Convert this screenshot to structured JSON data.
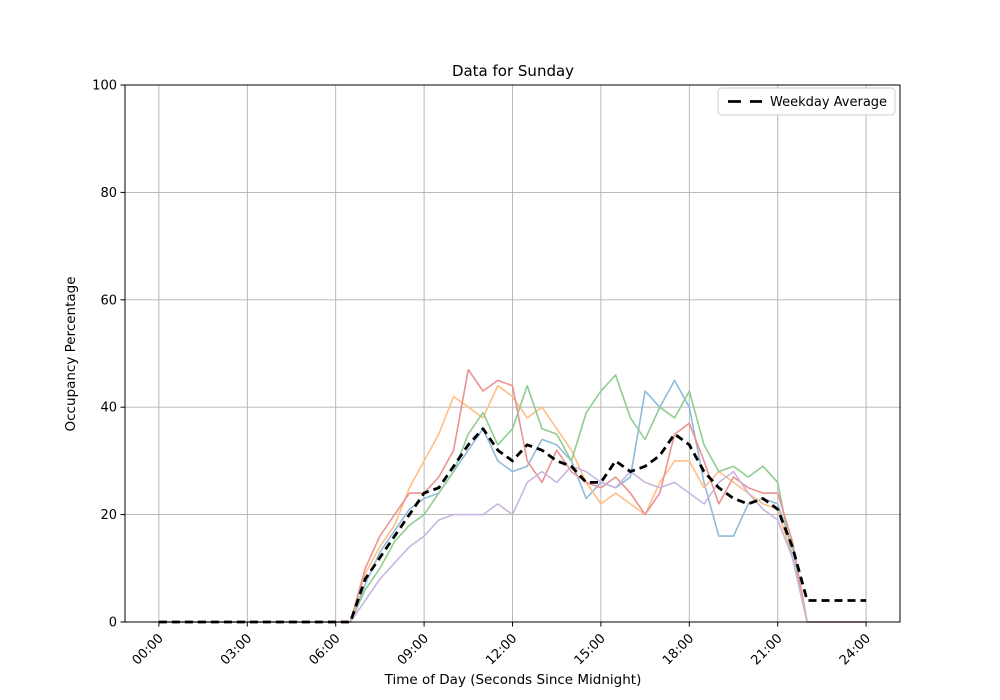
{
  "figure": {
    "background": "#ffffff"
  },
  "chart_data": {
    "type": "line",
    "title": "Data for Sunday",
    "xlabel": "Time of Day (Seconds Since Midnight)",
    "ylabel": "Occupancy Percentage",
    "legend_label": "Weekday Average",
    "legend_position": "upper right",
    "grid": true,
    "grid_color": "#b0b0b0",
    "axis_color": "#000000",
    "ylim": [
      0,
      100
    ],
    "xlim_hours": [
      -1.15,
      25.15
    ],
    "y_ticks": [
      0,
      20,
      40,
      60,
      80,
      100
    ],
    "x_ticks": [
      {
        "hour": 0,
        "label": "00:00"
      },
      {
        "hour": 3,
        "label": "03:00"
      },
      {
        "hour": 6,
        "label": "06:00"
      },
      {
        "hour": 9,
        "label": "09:00"
      },
      {
        "hour": 12,
        "label": "12:00"
      },
      {
        "hour": 15,
        "label": "15:00"
      },
      {
        "hour": 18,
        "label": "18:00"
      },
      {
        "hour": 21,
        "label": "21:00"
      },
      {
        "hour": 24,
        "label": "24:00"
      }
    ],
    "x_hours": [
      0,
      0.5,
      1,
      1.5,
      2,
      2.5,
      3,
      3.5,
      4,
      4.5,
      5,
      5.5,
      6,
      6.5,
      7,
      7.5,
      8,
      8.5,
      9,
      9.5,
      10,
      10.5,
      11,
      11.5,
      12,
      12.5,
      13,
      13.5,
      14,
      14.5,
      15,
      15.5,
      16,
      16.5,
      17,
      17.5,
      18,
      18.5,
      19,
      19.5,
      20,
      20.5,
      21,
      21.5,
      22,
      22.5,
      23,
      23.5,
      24
    ],
    "series": [
      {
        "name": "series-1",
        "color": "#8ebcdc",
        "line_width": 1.6,
        "dash": "solid",
        "in_legend": false,
        "values": [
          0,
          0,
          0,
          0,
          0,
          0,
          0,
          0,
          0,
          0,
          0,
          0,
          0,
          0,
          7,
          13,
          17,
          21,
          23,
          24,
          28,
          32,
          36,
          30,
          28,
          29,
          34,
          33,
          30,
          23,
          26,
          25,
          27,
          43,
          40,
          45,
          40,
          26,
          16,
          16,
          22,
          23,
          22,
          14,
          0,
          0,
          0,
          0,
          0
        ]
      },
      {
        "name": "series-2",
        "color": "#ffbe86",
        "line_width": 1.6,
        "dash": "solid",
        "in_legend": false,
        "values": [
          0,
          0,
          0,
          0,
          0,
          0,
          0,
          0,
          0,
          0,
          0,
          0,
          0,
          0,
          9,
          14,
          18,
          25,
          30,
          35,
          42,
          40,
          38,
          44,
          42,
          38,
          40,
          36,
          32,
          26,
          22,
          24,
          22,
          20,
          26,
          30,
          30,
          25,
          28,
          26,
          24,
          22,
          21,
          12,
          0,
          0,
          0,
          0,
          0
        ]
      },
      {
        "name": "series-3",
        "color": "#90cd90",
        "line_width": 1.6,
        "dash": "solid",
        "in_legend": false,
        "values": [
          0,
          0,
          0,
          0,
          0,
          0,
          0,
          0,
          0,
          0,
          0,
          0,
          0,
          0,
          6,
          10,
          15,
          18,
          20,
          24,
          28,
          35,
          39,
          33,
          36,
          44,
          36,
          35,
          30,
          39,
          43,
          46,
          38,
          34,
          40,
          38,
          43,
          33,
          28,
          29,
          27,
          29,
          26,
          12,
          0,
          0,
          0,
          0,
          0
        ]
      },
      {
        "name": "series-4",
        "color": "#ea9392",
        "line_width": 1.6,
        "dash": "solid",
        "in_legend": false,
        "values": [
          0,
          0,
          0,
          0,
          0,
          0,
          0,
          0,
          0,
          0,
          0,
          0,
          0,
          0,
          10,
          16,
          20,
          24,
          24,
          27,
          32,
          47,
          43,
          45,
          44,
          30,
          26,
          32,
          28,
          26,
          25,
          27,
          24,
          20,
          24,
          35,
          37,
          30,
          22,
          27,
          25,
          24,
          24,
          15,
          0,
          0,
          0,
          0,
          0
        ]
      },
      {
        "name": "series-5",
        "color": "#c9b6de",
        "line_width": 1.6,
        "dash": "solid",
        "in_legend": false,
        "values": [
          0,
          0,
          0,
          0,
          0,
          0,
          0,
          0,
          0,
          0,
          0,
          0,
          0,
          0,
          4,
          8,
          11,
          14,
          16,
          19,
          20,
          20,
          20,
          22,
          20,
          26,
          28,
          26,
          29,
          28,
          26,
          25,
          28,
          26,
          25,
          26,
          24,
          22,
          26,
          28,
          24,
          21,
          19,
          12,
          0,
          0,
          0,
          0,
          0
        ]
      },
      {
        "name": "Weekday Average",
        "color": "#000000",
        "line_width": 2.8,
        "dash": "dashed",
        "in_legend": true,
        "values": [
          0,
          0,
          0,
          0,
          0,
          0,
          0,
          0,
          0,
          0,
          0,
          0,
          0,
          0,
          8,
          12,
          16,
          20,
          24,
          25,
          29,
          33,
          36,
          32,
          30,
          33,
          32,
          30,
          29,
          26,
          26,
          30,
          28,
          29,
          31,
          35,
          33,
          28,
          25,
          23,
          22,
          23,
          21,
          14,
          4,
          4,
          4,
          4,
          4
        ]
      }
    ]
  }
}
